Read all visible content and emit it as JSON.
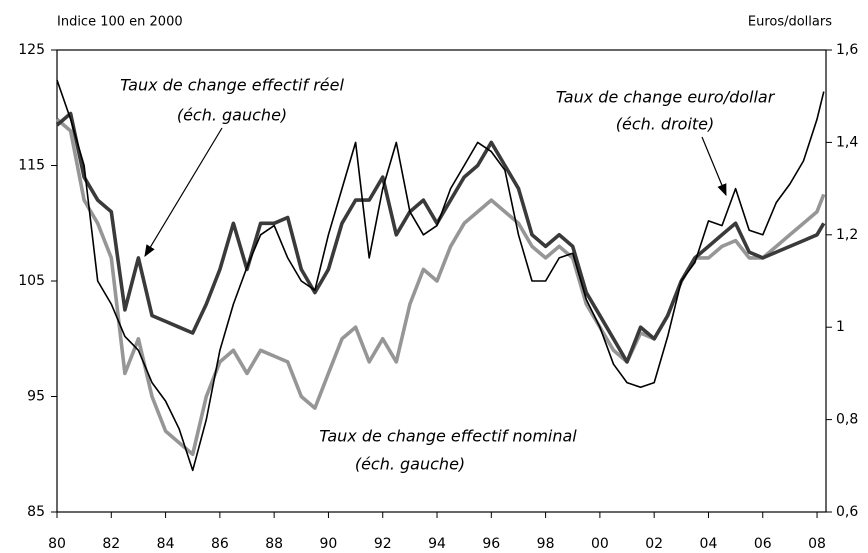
{
  "chart_data": {
    "type": "line",
    "ylabel": "Indice 100 en 2000",
    "y2label": "Euros/dollars",
    "x": [
      1980,
      1980.5,
      1981,
      1981.5,
      1982,
      1982.5,
      1983,
      1983.5,
      1984,
      1984.5,
      1985,
      1985.5,
      1986,
      1986.5,
      1987,
      1987.5,
      1988,
      1988.5,
      1989,
      1989.5,
      1990,
      1990.5,
      1991,
      1991.5,
      1992,
      1992.5,
      1993,
      1993.5,
      1994,
      1994.5,
      1995,
      1995.5,
      1996,
      1996.5,
      1997,
      1997.5,
      1998,
      1998.5,
      1999,
      1999.5,
      2000,
      2000.5,
      2001,
      2001.5,
      2002,
      2002.5,
      2003,
      2003.5,
      2004,
      2004.5,
      2005,
      2005.5,
      2006,
      2006.5,
      2007,
      2007.5,
      2008,
      2008.25
    ],
    "series": [
      {
        "name": "Taux de change effectif réel",
        "note": "(éch. gauche)",
        "color": "#3a3a3a",
        "axis": "y",
        "values": [
          118.5,
          119.5,
          114,
          112,
          111,
          102.5,
          107,
          102,
          101.5,
          101,
          100.5,
          103,
          106,
          110,
          106,
          110,
          110,
          110.5,
          106,
          104,
          106,
          110,
          112,
          112,
          114,
          109,
          111,
          112,
          110,
          112,
          114,
          115,
          117,
          115,
          113,
          109,
          108,
          109,
          108,
          104,
          102,
          100,
          98,
          101,
          100,
          102,
          105,
          107,
          108,
          109,
          110,
          107.5,
          107,
          107.5,
          108,
          108.5,
          109,
          110
        ]
      },
      {
        "name": "Taux de change effectif nominal",
        "note": "(éch. gauche)",
        "color": "#969696",
        "axis": "y",
        "values": [
          119,
          118,
          112,
          110,
          107,
          97,
          100,
          95,
          92,
          91,
          90,
          95,
          98,
          99,
          97,
          99,
          98.5,
          98,
          95,
          94,
          97,
          100,
          101,
          98,
          100,
          98,
          103,
          106,
          105,
          108,
          110,
          111,
          112,
          111,
          110,
          108,
          107,
          108,
          107,
          103,
          101,
          99,
          98,
          100.5,
          100,
          102,
          105,
          107,
          107,
          108,
          108.5,
          107,
          107,
          108,
          109,
          110,
          111,
          112.5
        ]
      },
      {
        "name": "Taux de change euro/dollar",
        "note": "(éch. droite)",
        "color": "#000000",
        "axis": "y2",
        "values": [
          1.535,
          1.45,
          1.35,
          1.1,
          1.05,
          0.98,
          0.95,
          0.88,
          0.84,
          0.78,
          0.69,
          0.8,
          0.95,
          1.05,
          1.13,
          1.2,
          1.22,
          1.15,
          1.1,
          1.08,
          1.2,
          1.3,
          1.4,
          1.15,
          1.3,
          1.4,
          1.25,
          1.2,
          1.22,
          1.3,
          1.35,
          1.4,
          1.38,
          1.34,
          1.2,
          1.1,
          1.1,
          1.15,
          1.16,
          1.06,
          1.0,
          0.92,
          0.88,
          0.87,
          0.88,
          0.98,
          1.1,
          1.14,
          1.23,
          1.22,
          1.3,
          1.21,
          1.2,
          1.27,
          1.31,
          1.36,
          1.45,
          1.51
        ]
      }
    ],
    "xlim": [
      1980,
      2008.33
    ],
    "xticks": [
      {
        "value": 1980,
        "label": "80"
      },
      {
        "value": 1982,
        "label": "82"
      },
      {
        "value": 1984,
        "label": "84"
      },
      {
        "value": 1986,
        "label": "86"
      },
      {
        "value": 1988,
        "label": "88"
      },
      {
        "value": 1990,
        "label": "90"
      },
      {
        "value": 1992,
        "label": "92"
      },
      {
        "value": 1994,
        "label": "94"
      },
      {
        "value": 1996,
        "label": "96"
      },
      {
        "value": 1998,
        "label": "98"
      },
      {
        "value": 2000,
        "label": "00"
      },
      {
        "value": 2002,
        "label": "02"
      },
      {
        "value": 2004,
        "label": "04"
      },
      {
        "value": 2006,
        "label": "06"
      },
      {
        "value": 2008,
        "label": "08"
      }
    ],
    "ylim": [
      85,
      125
    ],
    "yticks": [
      85,
      95,
      105,
      115,
      125
    ],
    "y2lim": [
      0.6,
      1.6
    ],
    "y2ticks": [
      {
        "value": 0.6,
        "label": "0,6"
      },
      {
        "value": 0.8,
        "label": "0,8"
      },
      1,
      {
        "value": 1.2,
        "label": "1,2"
      },
      {
        "value": 1.4,
        "label": "1,4"
      },
      {
        "value": 1.6,
        "label": "1,6"
      }
    ]
  }
}
